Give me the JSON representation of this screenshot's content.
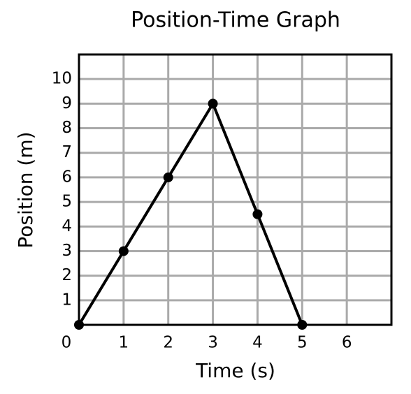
{
  "chart_data": {
    "type": "line",
    "title": "Position-Time Graph",
    "x_label": "Time (s)",
    "y_label": "Position (m)",
    "x": [
      0,
      1,
      2,
      3,
      4,
      5
    ],
    "values": [
      0,
      3,
      6,
      9,
      4.5,
      0
    ],
    "color": "#000000",
    "xlim": [
      0,
      7
    ],
    "ylim": [
      0,
      11
    ],
    "xticks": [
      0,
      1,
      2,
      3,
      4,
      5,
      6
    ],
    "yticks": [
      1,
      2,
      3,
      4,
      5,
      6,
      7,
      8,
      9,
      10
    ],
    "grid": true
  }
}
